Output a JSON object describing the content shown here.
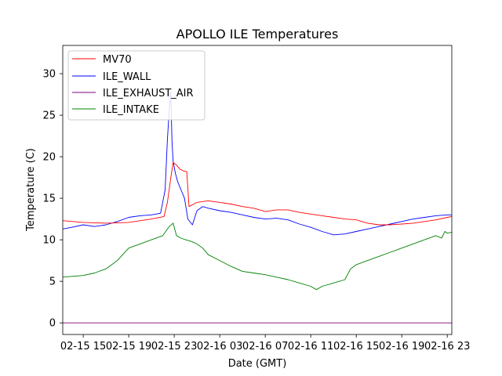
{
  "chart_data": {
    "type": "line",
    "title": "APOLLO ILE Temperatures",
    "xlabel": "Date (GMT)",
    "ylabel": "Temperature (C)",
    "x_unit": "hours since 02-15 00:00",
    "xlim": [
      13.2,
      47.4
    ],
    "ylim": [
      -1.4,
      33.4
    ],
    "grid": false,
    "legend_position": "top-left",
    "x_ticks": [
      {
        "x": 15,
        "label": "02-15 15"
      },
      {
        "x": 19,
        "label": "02-15 19"
      },
      {
        "x": 23,
        "label": "02-15 23"
      },
      {
        "x": 27,
        "label": "02-16 03"
      },
      {
        "x": 31,
        "label": "02-16 07"
      },
      {
        "x": 35,
        "label": "02-16 11"
      },
      {
        "x": 39,
        "label": "02-16 15"
      },
      {
        "x": 43,
        "label": "02-16 19"
      },
      {
        "x": 47,
        "label": "02-16 23"
      }
    ],
    "y_ticks": [
      {
        "y": 0,
        "label": "0"
      },
      {
        "y": 5,
        "label": "5"
      },
      {
        "y": 10,
        "label": "10"
      },
      {
        "y": 15,
        "label": "15"
      },
      {
        "y": 20,
        "label": "20"
      },
      {
        "y": 25,
        "label": "25"
      },
      {
        "y": 30,
        "label": "30"
      }
    ],
    "series": [
      {
        "name": "MV70",
        "color": "#ff0000",
        "x": [
          13.2,
          15,
          17,
          19,
          21,
          22.1,
          22.4,
          22.7,
          22.9,
          23.2,
          23.5,
          23.8,
          24.1,
          24.3,
          25.0,
          26.0,
          27,
          28,
          29,
          30,
          31,
          32,
          33,
          34,
          35,
          36,
          37,
          38,
          39,
          40,
          41,
          42,
          43,
          44,
          45,
          46,
          47,
          47.4
        ],
        "y": [
          12.3,
          12.1,
          12.0,
          12.1,
          12.5,
          12.8,
          14.5,
          17.5,
          19.3,
          19.0,
          18.5,
          18.3,
          18.2,
          14.0,
          14.5,
          14.7,
          14.5,
          14.3,
          14.0,
          13.8,
          13.4,
          13.6,
          13.6,
          13.3,
          13.1,
          12.9,
          12.7,
          12.5,
          12.4,
          12.0,
          11.8,
          11.8,
          11.9,
          12.0,
          12.2,
          12.4,
          12.7,
          12.8
        ]
      },
      {
        "name": "ILE_WALL",
        "color": "#0000ff",
        "x": [
          13.2,
          14,
          15,
          16,
          17,
          18,
          19,
          20,
          21,
          21.8,
          22.2,
          22.4,
          22.6,
          22.7,
          22.8,
          22.9,
          23.1,
          23.3,
          23.6,
          23.9,
          24.2,
          24.6,
          25.0,
          25.5,
          26,
          27,
          28,
          29,
          30,
          31,
          32,
          33,
          34,
          35,
          36,
          37,
          38,
          39,
          40,
          41,
          42,
          43,
          44,
          45,
          46,
          47,
          47.4
        ],
        "y": [
          11.3,
          11.5,
          11.8,
          11.6,
          11.8,
          12.2,
          12.7,
          12.9,
          13.0,
          13.2,
          16.0,
          22.0,
          26.5,
          27.8,
          22.0,
          19.5,
          18.0,
          17.0,
          16.0,
          15.0,
          12.5,
          11.8,
          13.5,
          14.0,
          13.8,
          13.5,
          13.3,
          13.0,
          12.7,
          12.5,
          12.6,
          12.4,
          11.9,
          11.5,
          11.0,
          10.6,
          10.7,
          11.0,
          11.3,
          11.6,
          11.9,
          12.2,
          12.5,
          12.7,
          12.9,
          13.0,
          13.0
        ]
      },
      {
        "name": "ILE_EXHAUST_AIR",
        "color": "#800080",
        "x": [
          13.2,
          47.4
        ],
        "y": [
          0.0,
          0.0
        ]
      },
      {
        "name": "ILE_INTAKE",
        "color": "#008000",
        "x": [
          13.2,
          14,
          15,
          16,
          17,
          18,
          19,
          20,
          21,
          22,
          22.5,
          22.9,
          23.2,
          23.6,
          24.0,
          24.5,
          25.0,
          25.5,
          26,
          27,
          28,
          29,
          30,
          31,
          32,
          33,
          34,
          35,
          35.5,
          36,
          37,
          38,
          38.5,
          39,
          40,
          41,
          42,
          43,
          44,
          45,
          46,
          46.5,
          46.8,
          47,
          47.4
        ],
        "y": [
          5.5,
          5.6,
          5.7,
          6.0,
          6.5,
          7.5,
          9.0,
          9.5,
          10.0,
          10.5,
          11.5,
          12.0,
          10.5,
          10.2,
          10.0,
          9.8,
          9.5,
          9.0,
          8.2,
          7.5,
          6.8,
          6.2,
          6.0,
          5.8,
          5.5,
          5.2,
          4.8,
          4.4,
          4.0,
          4.4,
          4.8,
          5.2,
          6.5,
          7.0,
          7.5,
          8.0,
          8.5,
          9.0,
          9.5,
          10.0,
          10.5,
          10.2,
          11.0,
          10.8,
          10.9
        ]
      }
    ]
  }
}
